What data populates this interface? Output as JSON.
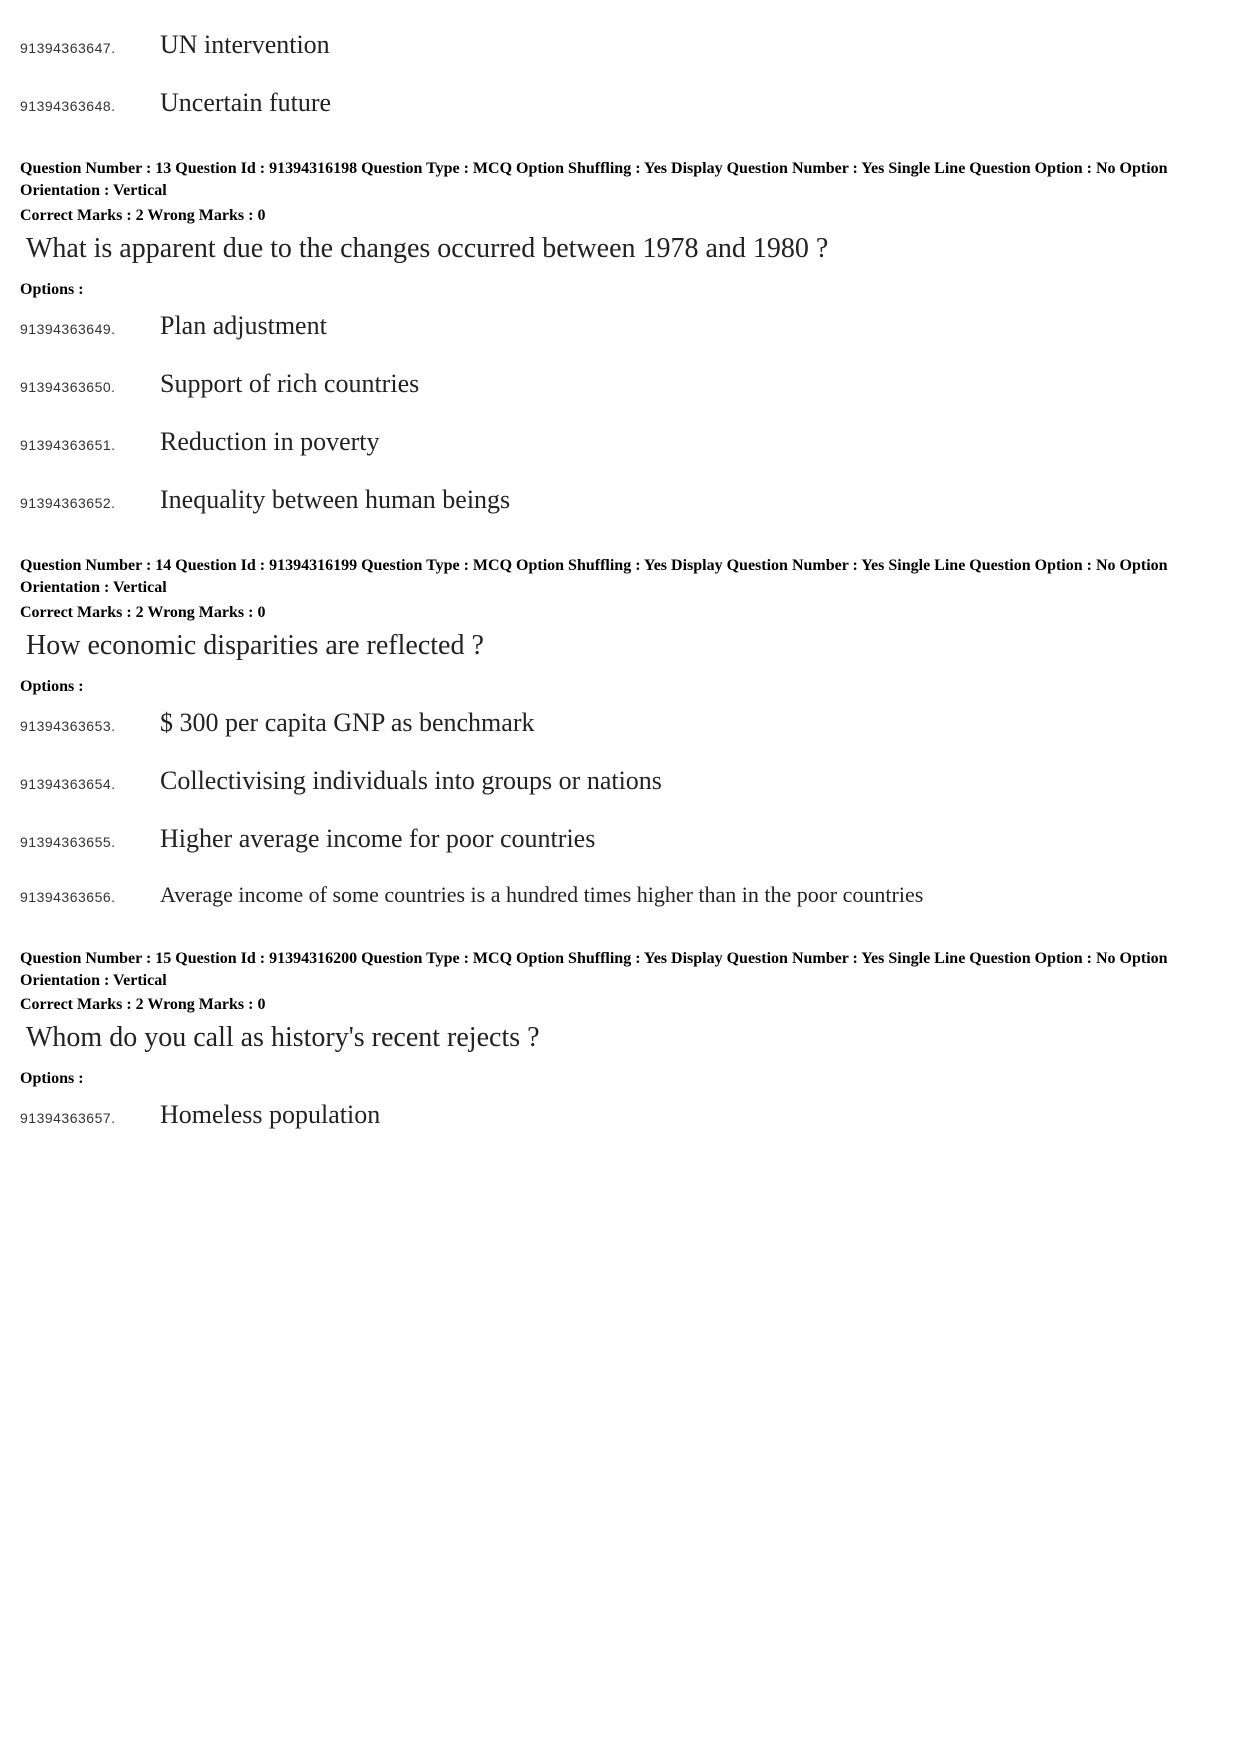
{
  "orphan_options": [
    {
      "id": "91394363647.",
      "text": "UN intervention"
    },
    {
      "id": "91394363648.",
      "text": "Uncertain future"
    }
  ],
  "questions": [
    {
      "meta_line1": "Question Number : 13  Question Id : 91394316198  Question Type : MCQ  Option Shuffling : Yes  Display Question Number : Yes  Single Line Question Option : No  Option Orientation : Vertical",
      "marks": "Correct Marks : 2  Wrong Marks : 0",
      "question": "What is apparent due to the changes occurred between 1978 and 1980 ?",
      "options_header": "Options :",
      "options": [
        {
          "id": "91394363649.",
          "text": "Plan adjustment",
          "small": false
        },
        {
          "id": "91394363650.",
          "text": "Support of rich countries",
          "small": false
        },
        {
          "id": "91394363651.",
          "text": "Reduction in poverty",
          "small": false
        },
        {
          "id": "91394363652.",
          "text": "Inequality between human beings",
          "small": false
        }
      ]
    },
    {
      "meta_line1": "Question Number : 14  Question Id : 91394316199  Question Type : MCQ  Option Shuffling : Yes  Display Question Number : Yes  Single Line Question Option : No  Option Orientation : Vertical",
      "marks": "Correct Marks : 2  Wrong Marks : 0",
      "question": "How economic disparities are reflected ?",
      "options_header": "Options :",
      "options": [
        {
          "id": "91394363653.",
          "text": "$ 300 per capita GNP as benchmark",
          "small": false
        },
        {
          "id": "91394363654.",
          "text": "Collectivising individuals into groups or nations",
          "small": false
        },
        {
          "id": "91394363655.",
          "text": "Higher average income for poor countries",
          "small": false
        },
        {
          "id": "91394363656.",
          "text": "Average income of some countries is a hundred times higher than in the poor countries",
          "small": true
        }
      ]
    },
    {
      "meta_line1": "Question Number : 15  Question Id : 91394316200  Question Type : MCQ  Option Shuffling : Yes  Display Question Number : Yes  Single Line Question Option : No  Option Orientation : Vertical",
      "marks": "Correct Marks : 2  Wrong Marks : 0",
      "question": "Whom do you call as history's recent rejects ?",
      "options_header": "Options :",
      "options": [
        {
          "id": "91394363657.",
          "text": "Homeless population",
          "small": false
        }
      ]
    }
  ]
}
